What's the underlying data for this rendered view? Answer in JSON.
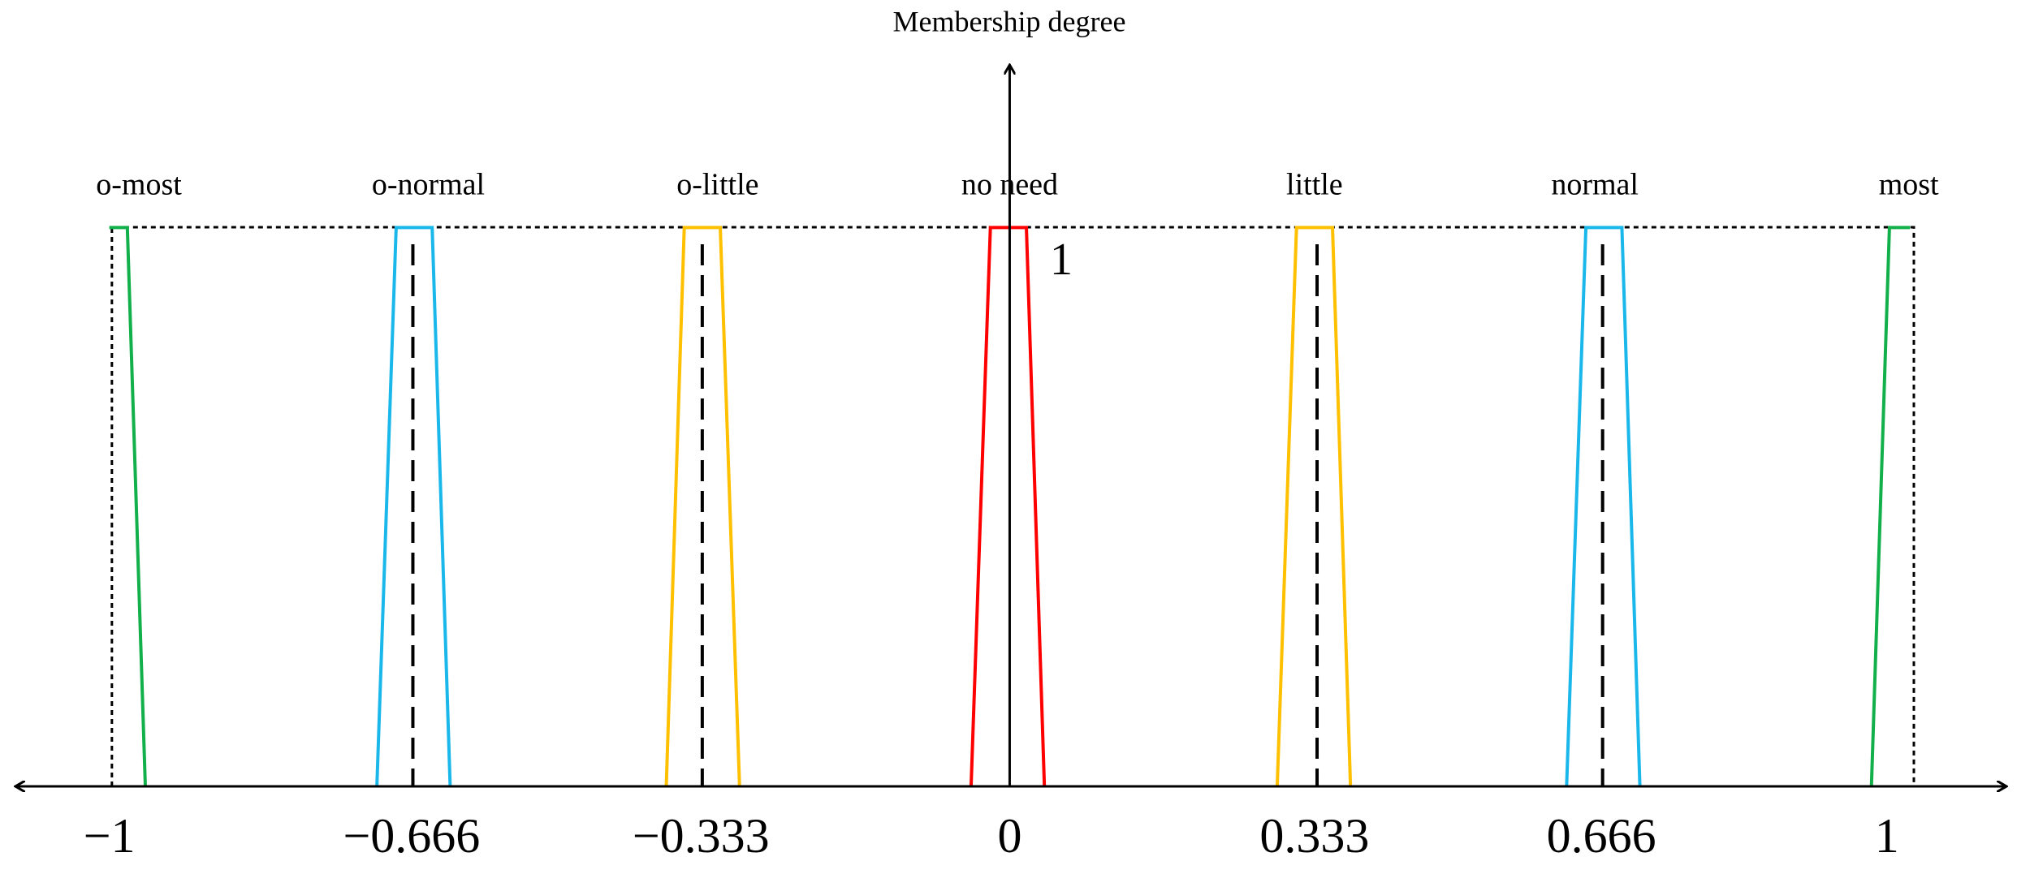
{
  "axis_label": "Membership degree",
  "peak_label": "1",
  "sets": [
    "o-most",
    "o-normal",
    "o-little",
    "no need",
    "little",
    "normal",
    "most"
  ],
  "x_labels": [
    "−1",
    "−0.666",
    "−0.333",
    "0",
    "0.333",
    "0.666",
    "1"
  ]
}
